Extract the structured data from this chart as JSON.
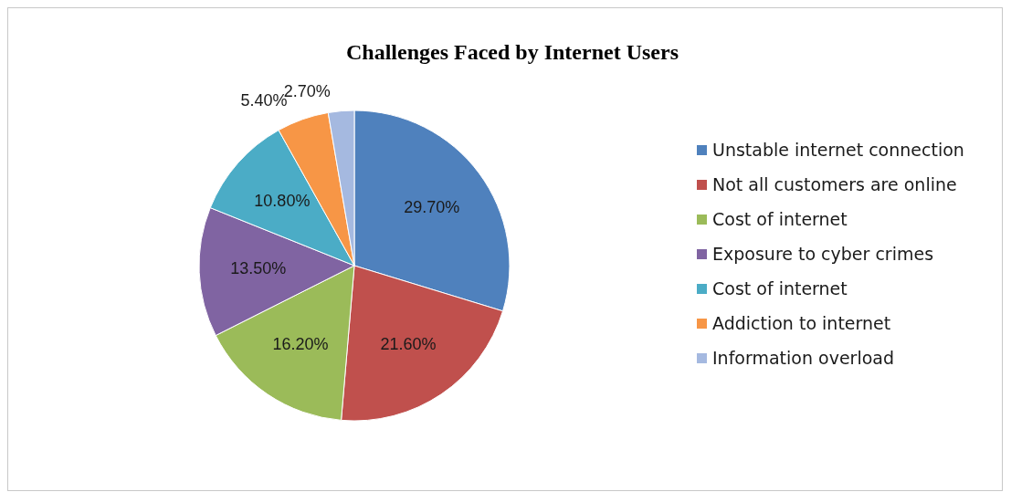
{
  "chart_data": {
    "type": "pie",
    "title": "Challenges Faced by Internet Users",
    "categories": [
      "Unstable internet connection",
      "Not all customers are online",
      "Cost of internet",
      "Exposure to cyber crimes",
      "Cost of internet",
      "Addiction to internet",
      "Information overload"
    ],
    "values": [
      29.7,
      21.6,
      16.2,
      13.5,
      10.8,
      5.4,
      2.7
    ],
    "value_labels": [
      "29.70%",
      "21.60%",
      "16.20%",
      "13.50%",
      "10.80%",
      "5.40%",
      "2.70%"
    ],
    "colors": [
      "#4f81bd",
      "#c0504d",
      "#9bbb59",
      "#8064a2",
      "#4bacc6",
      "#f79646",
      "#a5b9e0"
    ],
    "legend": "right"
  }
}
